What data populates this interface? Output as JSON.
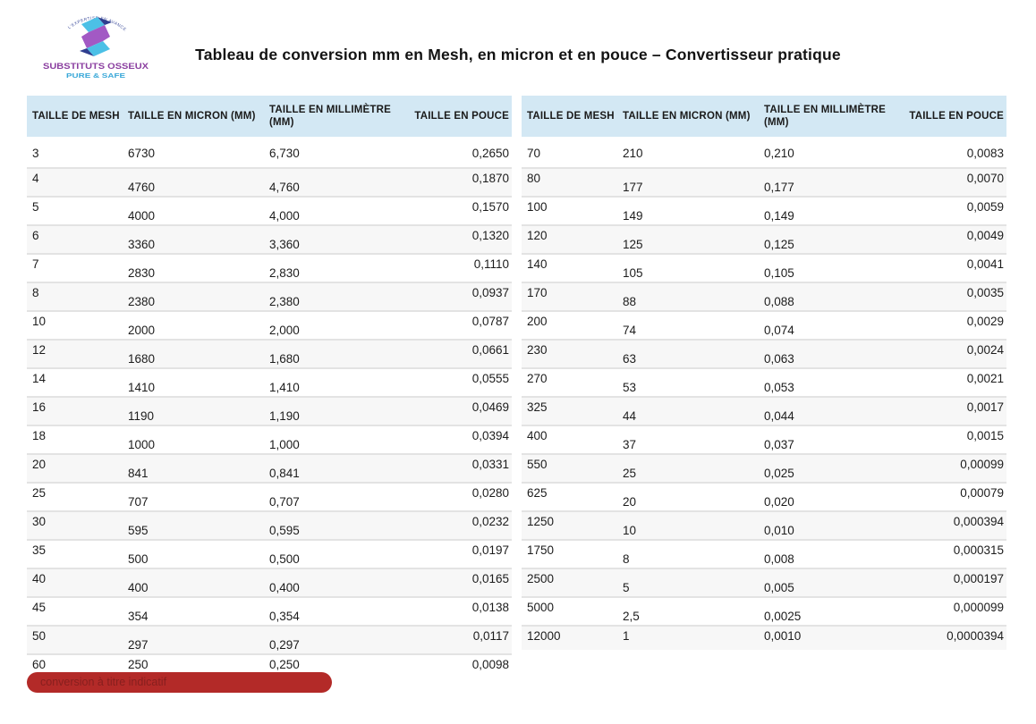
{
  "logo": {
    "arc_text": "L'EXPERTISE EN AVANCE",
    "name_line": "SUBSTITUTS OSSEUX",
    "tagline": "PURE & SAFE",
    "colors": {
      "cyan": "#4cc0e6",
      "navy": "#2f3e8f",
      "purple": "#a259c4",
      "name_text": "#8b3fa0",
      "tagline_text": "#3aa8d8",
      "arc_text": "#3a4a9a"
    }
  },
  "title": "Tableau de conversion mm en Mesh, en micron et en pouce – Convertisseur pratique",
  "tables": [
    {
      "headers": [
        "TAILLE DE MESH",
        "TAILLE EN MICRON (MM)",
        "TAILLE EN MILLIMÈTRE (MM)",
        "TAILLE EN POUCE"
      ],
      "rows": [
        [
          "3",
          "6730",
          "6,730",
          "0,2650"
        ],
        [
          "4",
          "4760",
          "4,760",
          "0,1870"
        ],
        [
          "5",
          "4000",
          "4,000",
          "0,1570"
        ],
        [
          "6",
          "3360",
          "3,360",
          "0,1320"
        ],
        [
          "7",
          "2830",
          "2,830",
          "0,1110"
        ],
        [
          "8",
          "2380",
          "2,380",
          "0,0937"
        ],
        [
          "10",
          "2000",
          "2,000",
          "0,0787"
        ],
        [
          "12",
          "1680",
          "1,680",
          "0,0661"
        ],
        [
          "14",
          "1410",
          "1,410",
          "0,0555"
        ],
        [
          "16",
          "1190",
          "1,190",
          "0,0469"
        ],
        [
          "18",
          "1000",
          "1,000",
          "0,0394"
        ],
        [
          "20",
          "841",
          "0,841",
          "0,0331"
        ],
        [
          "25",
          "707",
          "0,707",
          "0,0280"
        ],
        [
          "30",
          "595",
          "0,595",
          "0,0232"
        ],
        [
          "35",
          "500",
          "0,500",
          "0,0197"
        ],
        [
          "40",
          "400",
          "0,400",
          "0,0165"
        ],
        [
          "45",
          "354",
          "0,354",
          "0,0138"
        ],
        [
          "50",
          "297",
          "0,297",
          "0,0117"
        ],
        [
          "60",
          "250",
          "0,250",
          "0,0098"
        ]
      ]
    },
    {
      "headers": [
        "TAILLE DE MESH",
        "TAILLE EN MICRON (MM)",
        "TAILLE EN MILLIMÈTRE (MM)",
        "TAILLE EN POUCE"
      ],
      "rows": [
        [
          "70",
          "210",
          "0,210",
          "0,0083"
        ],
        [
          "80",
          "177",
          "0,177",
          "0,0070"
        ],
        [
          "100",
          "149",
          "0,149",
          "0,0059"
        ],
        [
          "120",
          "125",
          "0,125",
          "0,0049"
        ],
        [
          "140",
          "105",
          "0,105",
          "0,0041"
        ],
        [
          "170",
          "88",
          "0,088",
          "0,0035"
        ],
        [
          "200",
          "74",
          "0,074",
          "0,0029"
        ],
        [
          "230",
          "63",
          "0,063",
          "0,0024"
        ],
        [
          "270",
          "53",
          "0,053",
          "0,0021"
        ],
        [
          "325",
          "44",
          "0,044",
          "0,0017"
        ],
        [
          "400",
          "37",
          "0,037",
          "0,0015"
        ],
        [
          "550",
          "25",
          "0,025",
          "0,00099"
        ],
        [
          "625",
          "20",
          "0,020",
          "0,00079"
        ],
        [
          "1250",
          "10",
          "0,010",
          "0,000394"
        ],
        [
          "1750",
          "8",
          "0,008",
          "0,000315"
        ],
        [
          "2500",
          "5",
          "0,005",
          "0,000197"
        ],
        [
          "5000",
          "2,5",
          "0,0025",
          "0,000099"
        ],
        [
          "12000",
          "1",
          "0,0010",
          "0,0000394"
        ]
      ]
    }
  ],
  "footer": {
    "badge_label": "conversion à titre indicatif"
  },
  "colors": {
    "header_bg": "#d3e8f4",
    "row_alt_bg": "#f7f7f7",
    "row_separator": "#e3e3e3",
    "badge_bg": "#b32a28",
    "badge_text": "#871f1e"
  }
}
